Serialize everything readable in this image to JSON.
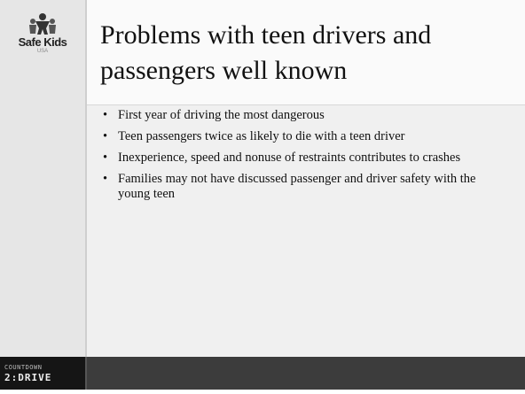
{
  "logo": {
    "name": "Safe Kids",
    "sub": "USA"
  },
  "title": "Problems with teen drivers and passengers well known",
  "bullets": [
    "First year of driving the most dangerous",
    "Teen passengers twice as likely to die with a teen driver",
    "Inexperience, speed and nonuse of restraints contributes to crashes",
    "Families may not have discussed passenger and driver safety with the young teen"
  ],
  "footer": {
    "line1": "COUNTDOWN",
    "line2": "2:DRIVE"
  }
}
